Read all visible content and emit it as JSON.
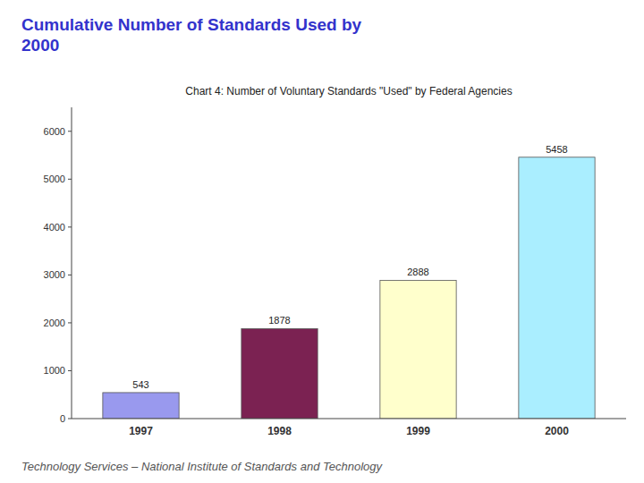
{
  "chart_data": {
    "type": "bar",
    "title": "Cumulative Number of Standards Used by\n2000",
    "subtitle": "Chart 4:  Number of Voluntary Standards \"Used\" by Federal Agencies",
    "footer": "Technology Services – National Institute of Standards and Technology",
    "categories": [
      "1997",
      "1998",
      "1999",
      "2000"
    ],
    "values": [
      543,
      1878,
      2888,
      5458
    ],
    "colors": [
      "#9999ee",
      "#7b2252",
      "#ffffcc",
      "#aaeeff"
    ],
    "ylim": [
      0,
      6500
    ],
    "yticks": [
      0,
      1000,
      2000,
      3000,
      4000,
      5000,
      6000
    ],
    "grid": false,
    "data_labels": true
  }
}
